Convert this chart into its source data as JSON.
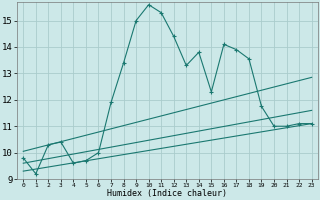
{
  "title": "",
  "xlabel": "Humidex (Indice chaleur)",
  "ylabel": "",
  "bg_color": "#cce8e8",
  "grid_color": "#aacccc",
  "line_color": "#1a7870",
  "xlim": [
    -0.5,
    23.5
  ],
  "ylim": [
    9,
    15.7
  ],
  "yticks": [
    9,
    10,
    11,
    12,
    13,
    14,
    15
  ],
  "xticks": [
    0,
    1,
    2,
    3,
    4,
    5,
    6,
    7,
    8,
    9,
    10,
    11,
    12,
    13,
    14,
    15,
    16,
    17,
    18,
    19,
    20,
    21,
    22,
    23
  ],
  "main_line": {
    "x": [
      0,
      1,
      2,
      3,
      4,
      5,
      6,
      7,
      8,
      9,
      10,
      11,
      12,
      13,
      14,
      15,
      16,
      17,
      18,
      19,
      20,
      21,
      22,
      23
    ],
    "y": [
      9.8,
      9.2,
      10.3,
      10.4,
      9.6,
      9.7,
      10.0,
      11.9,
      13.4,
      15.0,
      15.6,
      15.3,
      14.4,
      13.3,
      13.8,
      12.3,
      14.1,
      13.9,
      13.55,
      11.75,
      11.0,
      11.0,
      11.1,
      11.1
    ]
  },
  "upper_line": {
    "x": [
      0,
      23
    ],
    "y": [
      10.05,
      12.85
    ]
  },
  "mid_line": {
    "x": [
      0,
      23
    ],
    "y": [
      9.6,
      11.6
    ]
  },
  "lower_line": {
    "x": [
      0,
      23
    ],
    "y": [
      9.3,
      11.1
    ]
  }
}
